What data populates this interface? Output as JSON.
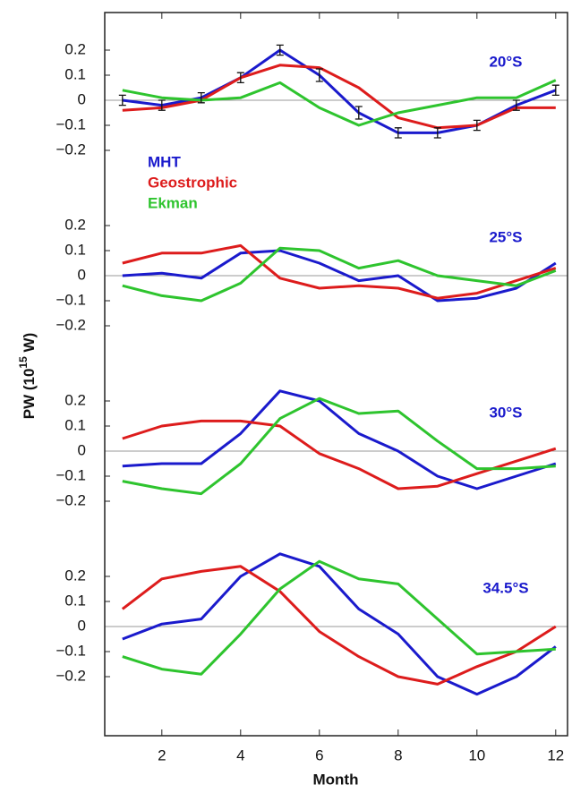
{
  "chart_data": {
    "type": "line",
    "xlabel": "Month",
    "ylabel": [
      "PW (10",
      "15",
      " W)"
    ],
    "x": [
      1,
      2,
      3,
      4,
      5,
      6,
      7,
      8,
      9,
      10,
      11,
      12
    ],
    "xlim": [
      0.55,
      12.3
    ],
    "xticks": [
      2,
      4,
      6,
      8,
      10,
      12
    ],
    "series": [
      {
        "name": "MHT",
        "color": "#1a1acc"
      },
      {
        "name": "Geostrophic",
        "color": "#dd1c1c"
      },
      {
        "name": "Ekman",
        "color": "#2ec42e"
      }
    ],
    "panels": [
      {
        "label": "20°S",
        "ylim": [
          -0.35,
          0.35
        ],
        "yticks": [
          {
            "value": 0.2,
            "label": "0.2"
          },
          {
            "value": 0.1,
            "label": "0.1"
          },
          0,
          {
            "value": -0.1,
            "label": "−0.1"
          },
          {
            "value": -0.2,
            "label": "−0.2"
          }
        ],
        "values": [
          [
            0,
            -0.02,
            0.01,
            0.09,
            0.2,
            0.1,
            -0.05,
            -0.13,
            -0.13,
            -0.1,
            -0.02,
            0.04
          ],
          [
            -0.04,
            -0.03,
            0,
            0.09,
            0.14,
            0.13,
            0.05,
            -0.07,
            -0.11,
            -0.1,
            -0.03,
            -0.03
          ],
          [
            0.04,
            0.01,
            0,
            0.01,
            0.07,
            -0.03,
            -0.1,
            -0.05,
            -0.02,
            0.01,
            0.01,
            0.08
          ]
        ],
        "errors": [
          0.02,
          0.02,
          0.02,
          0.02,
          0.02,
          0.025,
          0.025,
          0.02,
          0.02,
          0.02,
          0.02,
          0.02
        ]
      },
      {
        "label": "25°S",
        "ylim": [
          -0.35,
          0.35
        ],
        "yticks": [
          {
            "value": 0.2,
            "label": "0.2"
          },
          {
            "value": 0.1,
            "label": "0.1"
          },
          0,
          {
            "value": -0.1,
            "label": "−0.1"
          },
          {
            "value": -0.2,
            "label": "−0.2"
          }
        ],
        "values": [
          [
            0,
            0.01,
            -0.01,
            0.09,
            0.1,
            0.05,
            -0.02,
            0,
            -0.1,
            -0.09,
            -0.05,
            0.05
          ],
          [
            0.05,
            0.09,
            0.09,
            0.12,
            -0.01,
            -0.05,
            -0.04,
            -0.05,
            -0.09,
            -0.07,
            -0.02,
            0.03
          ],
          [
            -0.04,
            -0.08,
            -0.1,
            -0.03,
            0.11,
            0.1,
            0.03,
            0.06,
            0,
            -0.02,
            -0.04,
            0.02
          ]
        ]
      },
      {
        "label": "30°S",
        "ylim": [
          -0.35,
          0.35
        ],
        "yticks": [
          {
            "value": 0.2,
            "label": "0.2"
          },
          {
            "value": 0.1,
            "label": "0.1"
          },
          0,
          {
            "value": -0.1,
            "label": "−0.1"
          },
          {
            "value": -0.2,
            "label": "−0.2"
          }
        ],
        "values": [
          [
            -0.06,
            -0.05,
            -0.05,
            0.07,
            0.24,
            0.2,
            0.07,
            0,
            -0.1,
            -0.15,
            -0.1,
            -0.05
          ],
          [
            0.05,
            0.1,
            0.12,
            0.12,
            0.1,
            -0.01,
            -0.07,
            -0.15,
            -0.14,
            -0.09,
            -0.04,
            0.01
          ],
          [
            -0.12,
            -0.15,
            -0.17,
            -0.05,
            0.13,
            0.21,
            0.15,
            0.16,
            0.04,
            -0.07,
            -0.07,
            -0.06
          ]
        ]
      },
      {
        "label": "34.5°S",
        "ylim": [
          -0.35,
          0.35
        ],
        "yticks": [
          {
            "value": 0.2,
            "label": "0.2"
          },
          {
            "value": 0.1,
            "label": "0.1"
          },
          0,
          {
            "value": -0.1,
            "label": "−0.1"
          },
          {
            "value": -0.2,
            "label": "−0.2"
          }
        ],
        "values": [
          [
            -0.05,
            0.01,
            0.03,
            0.2,
            0.29,
            0.24,
            0.07,
            -0.03,
            -0.2,
            -0.27,
            -0.2,
            -0.08
          ],
          [
            0.07,
            0.19,
            0.22,
            0.24,
            0.14,
            -0.02,
            -0.12,
            -0.2,
            -0.23,
            -0.16,
            -0.1,
            0
          ],
          [
            -0.12,
            -0.17,
            -0.19,
            -0.03,
            0.15,
            0.26,
            0.19,
            0.17,
            0.03,
            -0.11,
            -0.1,
            -0.09
          ]
        ]
      }
    ],
    "zero_line": true
  }
}
